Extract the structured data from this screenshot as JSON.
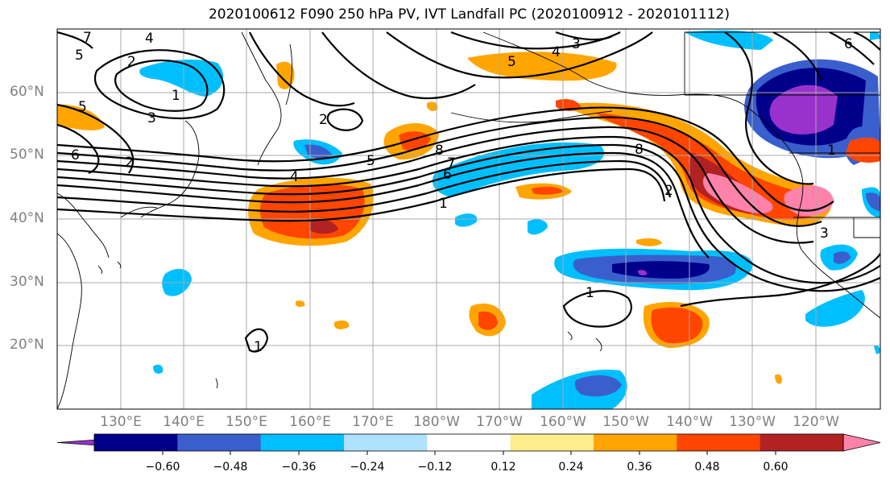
{
  "title": "2020100612 F090 250 hPa PV, IVT Landfall PC (2020100912 - 2020101112)",
  "map": {
    "lon_range": [
      120,
      250
    ],
    "lat_range": [
      10,
      70
    ],
    "lat_ticks": [
      {
        "value": 20,
        "label": "20°N"
      },
      {
        "value": 30,
        "label": "30°N"
      },
      {
        "value": 40,
        "label": "40°N"
      },
      {
        "value": 50,
        "label": "50°N"
      },
      {
        "value": 60,
        "label": "60°N"
      }
    ],
    "lon_ticks": [
      {
        "value": 130,
        "label": "130°E"
      },
      {
        "value": 140,
        "label": "140°E"
      },
      {
        "value": 150,
        "label": "150°E"
      },
      {
        "value": 160,
        "label": "160°E"
      },
      {
        "value": 170,
        "label": "170°E"
      },
      {
        "value": 180,
        "label": "180°W"
      },
      {
        "value": 190,
        "label": "170°W"
      },
      {
        "value": 200,
        "label": "160°W"
      },
      {
        "value": 210,
        "label": "150°W"
      },
      {
        "value": 220,
        "label": "140°W"
      },
      {
        "value": 230,
        "label": "130°W"
      },
      {
        "value": 240,
        "label": "120°W"
      }
    ],
    "grid": true,
    "contour_labels": [
      "1",
      "2",
      "3",
      "4",
      "5",
      "6",
      "7",
      "8"
    ]
  },
  "colorbar": {
    "colors": [
      "#9932CC",
      "#00008B",
      "#3A5FCD",
      "#00BFFF",
      "#B0E2FF",
      "#FFFFFF",
      "#FFEC8B",
      "#FFA500",
      "#FF4500",
      "#B22222",
      "#FF82AB"
    ],
    "ticks": [
      "−0.60",
      "−0.48",
      "−0.36",
      "−0.24",
      "−0.12",
      "0.12",
      "0.24",
      "0.36",
      "0.48",
      "0.60"
    ],
    "extend": "both"
  }
}
